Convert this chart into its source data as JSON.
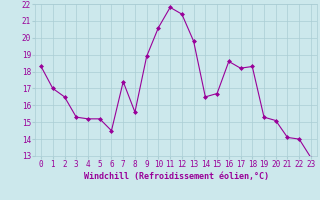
{
  "x": [
    0,
    1,
    2,
    3,
    4,
    5,
    6,
    7,
    8,
    9,
    10,
    11,
    12,
    13,
    14,
    15,
    16,
    17,
    18,
    19,
    20,
    21,
    22,
    23
  ],
  "y": [
    18.3,
    17.0,
    16.5,
    15.3,
    15.2,
    15.2,
    14.5,
    17.4,
    15.6,
    18.9,
    20.6,
    21.8,
    21.4,
    19.8,
    16.5,
    16.7,
    18.6,
    18.2,
    18.3,
    15.3,
    15.1,
    14.1,
    14.0,
    12.9
  ],
  "line_color": "#990099",
  "marker": "D",
  "marker_size": 2.0,
  "bg_color": "#cce8ec",
  "grid_color": "#aacdd4",
  "xlabel": "Windchill (Refroidissement éolien,°C)",
  "ylim": [
    13,
    22
  ],
  "xlim_min": -0.5,
  "xlim_max": 23.5,
  "yticks": [
    13,
    14,
    15,
    16,
    17,
    18,
    19,
    20,
    21,
    22
  ],
  "xticks": [
    0,
    1,
    2,
    3,
    4,
    5,
    6,
    7,
    8,
    9,
    10,
    11,
    12,
    13,
    14,
    15,
    16,
    17,
    18,
    19,
    20,
    21,
    22,
    23
  ],
  "tick_color": "#990099",
  "label_color": "#990099",
  "tick_fontsize": 5.5,
  "xlabel_fontsize": 6.0,
  "font_family": "monospace"
}
